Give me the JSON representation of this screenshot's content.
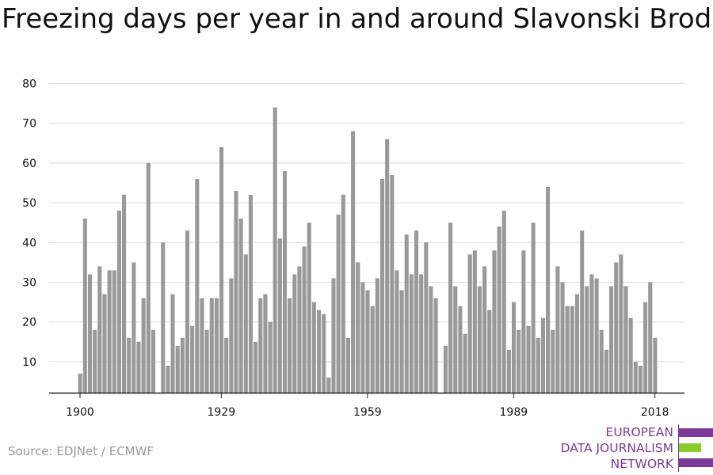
{
  "title": "Freezing days per year in and around Slavonski Brod",
  "source": "Source: EDJNet / ECMWF",
  "logo": {
    "line1": "EUROPEAN",
    "line2": "DATA JOURNALISM",
    "line3": "NETWORK",
    "colors": {
      "purple": "#7b3a96",
      "green": "#8ccc2a"
    }
  },
  "colors": {
    "bar": "#999999",
    "grid": "#dddddd",
    "axis": "#222222",
    "text": "#111111"
  },
  "chart_data": {
    "type": "bar",
    "title": "Freezing days per year in and around Slavonski Brod",
    "xlabel": "",
    "ylabel": "",
    "ylim": [
      2,
      82
    ],
    "yticks": [
      10,
      20,
      30,
      40,
      50,
      60,
      70,
      80
    ],
    "xticks": [
      1900,
      1929,
      1959,
      1989,
      2018
    ],
    "grid": true,
    "x": [
      1900,
      1901,
      1902,
      1903,
      1904,
      1905,
      1906,
      1907,
      1908,
      1909,
      1910,
      1911,
      1912,
      1913,
      1914,
      1915,
      1916,
      1917,
      1918,
      1919,
      1920,
      1921,
      1922,
      1923,
      1924,
      1925,
      1926,
      1927,
      1928,
      1929,
      1930,
      1931,
      1932,
      1933,
      1934,
      1935,
      1936,
      1937,
      1938,
      1939,
      1940,
      1941,
      1942,
      1943,
      1944,
      1945,
      1946,
      1947,
      1948,
      1949,
      1950,
      1951,
      1952,
      1953,
      1954,
      1955,
      1956,
      1957,
      1958,
      1959,
      1960,
      1961,
      1962,
      1963,
      1964,
      1965,
      1966,
      1967,
      1968,
      1969,
      1970,
      1971,
      1972,
      1973,
      1974,
      1975,
      1976,
      1977,
      1978,
      1979,
      1980,
      1981,
      1982,
      1983,
      1984,
      1985,
      1986,
      1987,
      1988,
      1989,
      1990,
      1991,
      1992,
      1993,
      1994,
      1995,
      1996,
      1997,
      1998,
      1999,
      2000,
      2001,
      2002,
      2003,
      2004,
      2005,
      2006,
      2007,
      2008,
      2009,
      2010,
      2011,
      2012,
      2013,
      2014,
      2015,
      2016,
      2017,
      2018
    ],
    "values": [
      7,
      46,
      32,
      18,
      34,
      27,
      33,
      33,
      48,
      52,
      16,
      35,
      15,
      26,
      60,
      18,
      2,
      40,
      9,
      27,
      14,
      16,
      43,
      19,
      56,
      26,
      18,
      26,
      26,
      64,
      16,
      31,
      53,
      46,
      37,
      52,
      15,
      26,
      27,
      20,
      74,
      41,
      58,
      26,
      32,
      34,
      39,
      45,
      25,
      23,
      22,
      6,
      31,
      47,
      52,
      16,
      68,
      35,
      30,
      28,
      24,
      31,
      56,
      66,
      57,
      33,
      28,
      42,
      32,
      43,
      32,
      40,
      29,
      26,
      2,
      14,
      45,
      29,
      24,
      17,
      37,
      38,
      29,
      34,
      23,
      38,
      44,
      48,
      13,
      25,
      18,
      38,
      19,
      45,
      16,
      21,
      54,
      18,
      34,
      30,
      24,
      24,
      27,
      43,
      29,
      32,
      31,
      18,
      13,
      29,
      35,
      37,
      29,
      21,
      10,
      9,
      25,
      30,
      16
    ]
  }
}
